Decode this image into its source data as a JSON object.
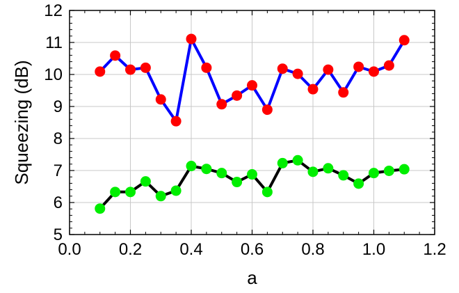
{
  "chart_data": {
    "type": "line",
    "title": "",
    "xlabel": "a",
    "ylabel": "Squeezing (dB)",
    "xlim": [
      0.0,
      1.2
    ],
    "ylim": [
      5,
      12
    ],
    "xticks": [
      "0.0",
      "0.2",
      "0.4",
      "0.6",
      "0.8",
      "1.0",
      "1.2"
    ],
    "yticks": [
      "5",
      "6",
      "7",
      "8",
      "9",
      "10",
      "11",
      "12"
    ],
    "grid": true,
    "legend": "none",
    "x": [
      0.1,
      0.15,
      0.2,
      0.25,
      0.3,
      0.35,
      0.4,
      0.45,
      0.5,
      0.55,
      0.6,
      0.65,
      0.7,
      0.75,
      0.8,
      0.85,
      0.9,
      0.95,
      1.0,
      1.05,
      1.1
    ],
    "series": [
      {
        "line_color": "#0000ff",
        "marker_color": "#ff0000",
        "values": [
          10.09,
          10.59,
          10.15,
          10.21,
          9.22,
          8.54,
          11.11,
          10.21,
          9.07,
          9.34,
          9.66,
          8.9,
          10.18,
          10.02,
          9.54,
          10.15,
          9.44,
          10.24,
          10.09,
          10.28,
          11.07
        ]
      },
      {
        "line_color": "#000000",
        "marker_color": "#00ee00",
        "values": [
          5.81,
          6.33,
          6.33,
          6.66,
          6.2,
          6.37,
          7.14,
          7.05,
          6.92,
          6.64,
          6.88,
          6.33,
          7.23,
          7.32,
          6.96,
          7.07,
          6.85,
          6.59,
          6.92,
          6.99,
          7.04
        ]
      }
    ]
  }
}
